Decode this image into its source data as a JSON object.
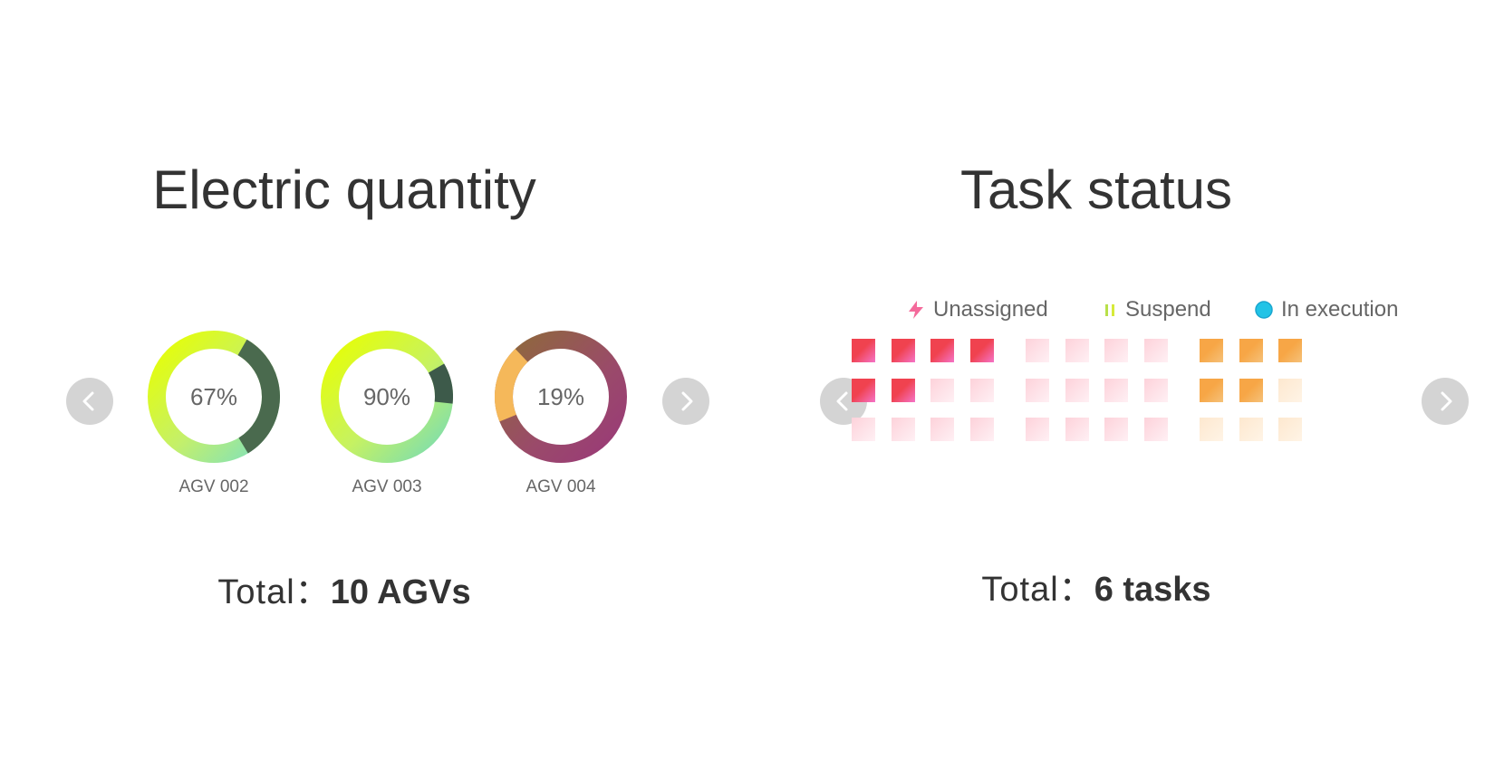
{
  "electric": {
    "title": "Electric quantity",
    "total_label": "Total：",
    "total_value": "10 AGVs",
    "gauges": [
      {
        "label": "AGV 002",
        "value_text": "67%",
        "value": 67,
        "colors": [
          "#e8ff00",
          "#4c6a4c",
          "#7de0c0"
        ]
      },
      {
        "label": "AGV 003",
        "value_text": "90%",
        "value": 90,
        "colors": [
          "#e8ff00",
          "#78dcb4",
          "#3d5a4a"
        ]
      },
      {
        "label": "AGV 004",
        "value_text": "19%",
        "value": 19,
        "colors": [
          "#f5b85a",
          "#8e6a3a",
          "#9a3a78"
        ]
      }
    ]
  },
  "task": {
    "title": "Task status",
    "total_label": "Total：",
    "total_value": "6 tasks",
    "legend": [
      {
        "label": "Unassigned",
        "icon": "lightning-icon",
        "color": "#f46a9b"
      },
      {
        "label": "Suspend",
        "icon": "pause-icon",
        "color": "#b8e04a"
      },
      {
        "label": "In execution",
        "icon": "circle-icon",
        "color": "#22c3e6"
      }
    ],
    "groups": [
      {
        "name": "unassigned",
        "active": 6,
        "total": 12,
        "color_from": "#f0424f",
        "color_to": "#f574c8",
        "inactive": "#fdd2da"
      },
      {
        "name": "suspend",
        "active": 0,
        "total": 12,
        "color_from": "#fbd0d8",
        "color_to": "#fde4ee",
        "inactive": "#fdd2da"
      },
      {
        "name": "in-execution",
        "active": 5,
        "total": 9,
        "color_from": "#f7a646",
        "color_to": "#f5c27a",
        "inactive": "#fde8cf"
      }
    ]
  },
  "icons": {
    "prev": "chevron-left-icon",
    "next": "chevron-right-icon"
  }
}
